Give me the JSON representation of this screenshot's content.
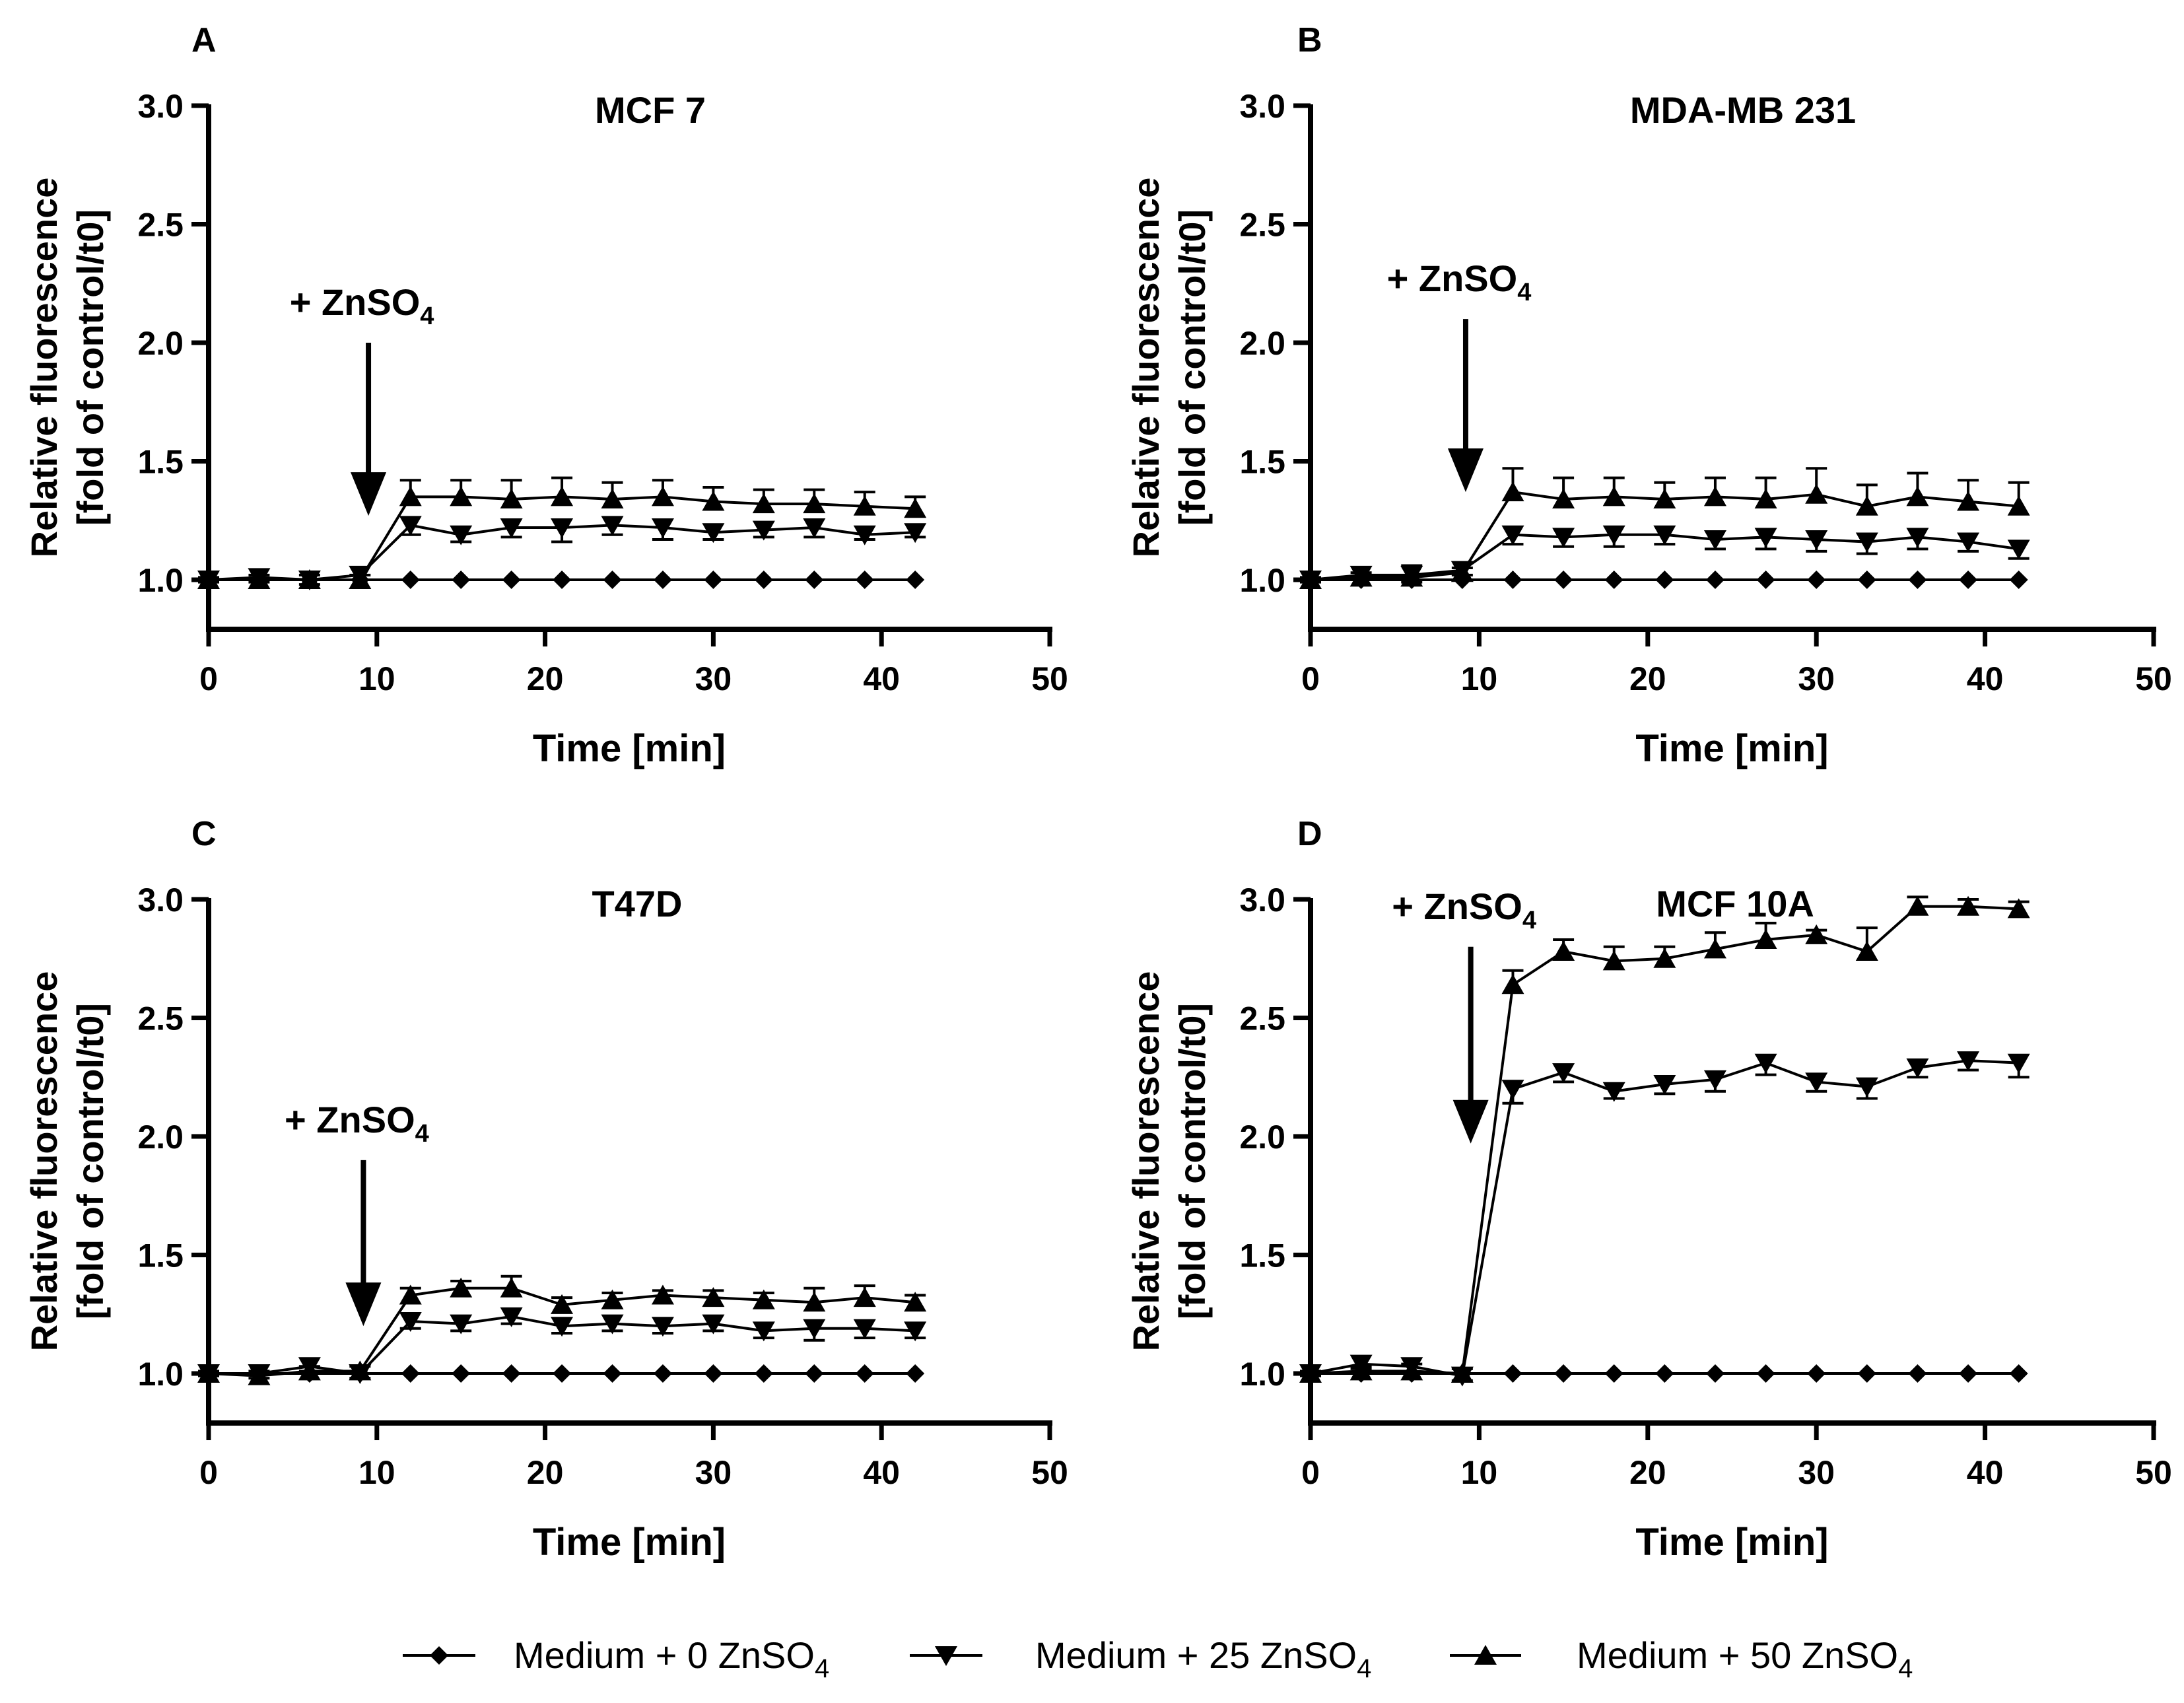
{
  "figure": {
    "legend": [
      {
        "label": "Medium + 0 ZnSO",
        "subscript": "4",
        "marker": "diamond"
      },
      {
        "label": "Medium + 25 ZnSO",
        "subscript": "4",
        "marker": "triangle-down"
      },
      {
        "label": "Medium + 50 ZnSO",
        "subscript": "4",
        "marker": "triangle-up"
      }
    ],
    "colors": {
      "line": "#000000",
      "marker": "#000000",
      "background": "#ffffff"
    }
  },
  "chart_data": [
    {
      "type": "line",
      "panel": "A",
      "title": "MCF 7",
      "xlabel": "Time [min]",
      "ylabel_line1": "Relative fluorescence",
      "ylabel_line2": "[fold of control/t0]",
      "xlim": [
        0,
        50
      ],
      "ylim": [
        0.8,
        3.0
      ],
      "xticks": [
        "0",
        "10",
        "20",
        "30",
        "40",
        "50"
      ],
      "yticks": [
        "1.0",
        "1.5",
        "2.0",
        "2.5",
        "3.0"
      ],
      "annotation": {
        "text": "+ ZnSO",
        "subscript": "4",
        "at_time": 9.5,
        "arrow_from": 2.0,
        "arrow_to": 1.27
      },
      "x": [
        0,
        3,
        6,
        9,
        12,
        15,
        18,
        21,
        24,
        27,
        30,
        33,
        36,
        39,
        42
      ],
      "series": [
        {
          "name": "Medium + 0 ZnSO4",
          "marker": "diamond",
          "values": [
            1.0,
            1.0,
            1.0,
            1.0,
            1.0,
            1.0,
            1.0,
            1.0,
            1.0,
            1.0,
            1.0,
            1.0,
            1.0,
            1.0,
            1.0
          ],
          "errors": [
            0,
            0,
            0,
            0,
            0,
            0,
            0,
            0,
            0,
            0,
            0,
            0,
            0,
            0,
            0
          ]
        },
        {
          "name": "Medium + 25 ZnSO4",
          "marker": "triangle-down",
          "values": [
            1.0,
            1.01,
            1.0,
            1.02,
            1.23,
            1.19,
            1.22,
            1.22,
            1.23,
            1.22,
            1.2,
            1.21,
            1.22,
            1.19,
            1.2
          ],
          "errors": [
            0.01,
            0.02,
            0.02,
            0.02,
            0.04,
            0.03,
            0.04,
            0.06,
            0.04,
            0.05,
            0.03,
            0.03,
            0.04,
            0.02,
            0.02
          ]
        },
        {
          "name": "Medium + 50 ZnSO4",
          "marker": "triangle-up",
          "values": [
            1.0,
            1.0,
            1.0,
            1.0,
            1.35,
            1.35,
            1.34,
            1.35,
            1.34,
            1.35,
            1.33,
            1.32,
            1.32,
            1.31,
            1.3
          ],
          "errors": [
            0.01,
            0.02,
            0.02,
            0.02,
            0.07,
            0.07,
            0.08,
            0.08,
            0.07,
            0.07,
            0.06,
            0.06,
            0.06,
            0.06,
            0.05
          ]
        }
      ]
    },
    {
      "type": "line",
      "panel": "B",
      "title": "MDA-MB 231",
      "xlabel": "Time [min]",
      "ylabel_line1": "Relative fluorescence",
      "ylabel_line2": "[fold of control/t0]",
      "xlim": [
        0,
        50
      ],
      "ylim": [
        0.8,
        3.0
      ],
      "xticks": [
        "0",
        "10",
        "20",
        "30",
        "40",
        "50"
      ],
      "yticks": [
        "1.0",
        "1.5",
        "2.0",
        "2.5",
        "3.0"
      ],
      "annotation": {
        "text": "+ ZnSO",
        "subscript": "4",
        "at_time": 9.2,
        "arrow_from": 2.1,
        "arrow_to": 1.37
      },
      "x": [
        0,
        3,
        6,
        9,
        12,
        15,
        18,
        21,
        24,
        27,
        30,
        33,
        36,
        39,
        42
      ],
      "series": [
        {
          "name": "Medium + 0 ZnSO4",
          "marker": "diamond",
          "values": [
            1.0,
            1.0,
            1.0,
            1.0,
            1.0,
            1.0,
            1.0,
            1.0,
            1.0,
            1.0,
            1.0,
            1.0,
            1.0,
            1.0,
            1.0
          ],
          "errors": [
            0,
            0,
            0,
            0,
            0,
            0,
            0,
            0,
            0,
            0,
            0,
            0,
            0,
            0,
            0
          ]
        },
        {
          "name": "Medium + 25 ZnSO4",
          "marker": "triangle-down",
          "values": [
            1.0,
            1.02,
            1.02,
            1.04,
            1.19,
            1.18,
            1.19,
            1.19,
            1.17,
            1.18,
            1.17,
            1.16,
            1.18,
            1.16,
            1.13
          ],
          "errors": [
            0.01,
            0.02,
            0.03,
            0.02,
            0.04,
            0.04,
            0.05,
            0.04,
            0.04,
            0.05,
            0.05,
            0.05,
            0.05,
            0.04,
            0.04
          ]
        },
        {
          "name": "Medium + 50 ZnSO4",
          "marker": "triangle-up",
          "values": [
            1.0,
            1.01,
            1.01,
            1.03,
            1.37,
            1.34,
            1.35,
            1.34,
            1.35,
            1.34,
            1.36,
            1.31,
            1.35,
            1.33,
            1.31
          ],
          "errors": [
            0.01,
            0.02,
            0.05,
            0.02,
            0.1,
            0.09,
            0.08,
            0.07,
            0.08,
            0.09,
            0.11,
            0.09,
            0.1,
            0.09,
            0.1
          ]
        }
      ]
    },
    {
      "type": "line",
      "panel": "C",
      "title": "T47D",
      "xlabel": "Time [min]",
      "ylabel_line1": "Relative fluorescence",
      "ylabel_line2": "[fold of control/t0]",
      "xlim": [
        0,
        50
      ],
      "ylim": [
        0.8,
        3.0
      ],
      "xticks": [
        "0",
        "10",
        "20",
        "30",
        "40",
        "50"
      ],
      "yticks": [
        "1.0",
        "1.5",
        "2.0",
        "2.5",
        "3.0"
      ],
      "annotation": {
        "text": "+ ZnSO",
        "subscript": "4",
        "at_time": 9.2,
        "arrow_from": 1.9,
        "arrow_to": 1.2
      },
      "x": [
        0,
        3,
        6,
        9,
        12,
        15,
        18,
        21,
        24,
        27,
        30,
        33,
        36,
        39,
        42
      ],
      "series": [
        {
          "name": "Medium + 0 ZnSO4",
          "marker": "diamond",
          "values": [
            1.0,
            1.0,
            1.0,
            1.0,
            1.0,
            1.0,
            1.0,
            1.0,
            1.0,
            1.0,
            1.0,
            1.0,
            1.0,
            1.0,
            1.0
          ],
          "errors": [
            0,
            0,
            0,
            0,
            0,
            0,
            0,
            0,
            0,
            0,
            0,
            0,
            0,
            0,
            0
          ]
        },
        {
          "name": "Medium + 25 ZnSO4",
          "marker": "triangle-down",
          "values": [
            1.0,
            1.0,
            1.03,
            1.0,
            1.22,
            1.21,
            1.24,
            1.2,
            1.21,
            1.2,
            1.21,
            1.18,
            1.19,
            1.19,
            1.18
          ],
          "errors": [
            0.01,
            0.02,
            0.02,
            0.02,
            0.03,
            0.03,
            0.03,
            0.03,
            0.03,
            0.03,
            0.03,
            0.03,
            0.05,
            0.04,
            0.03
          ]
        },
        {
          "name": "Medium + 50 ZnSO4",
          "marker": "triangle-up",
          "values": [
            1.0,
            0.99,
            1.01,
            1.01,
            1.33,
            1.36,
            1.36,
            1.29,
            1.31,
            1.33,
            1.32,
            1.31,
            1.3,
            1.32,
            1.3
          ],
          "errors": [
            0.01,
            0.02,
            0.02,
            0.02,
            0.03,
            0.03,
            0.05,
            0.03,
            0.03,
            0.02,
            0.03,
            0.03,
            0.06,
            0.05,
            0.03
          ]
        }
      ]
    },
    {
      "type": "line",
      "panel": "D",
      "title": "MCF 10A",
      "xlabel": "Time [min]",
      "ylabel_line1": "Relative fluorescence",
      "ylabel_line2": "[fold of control/t0]",
      "xlim": [
        0,
        50
      ],
      "ylim": [
        0.8,
        3.0
      ],
      "xticks": [
        "0",
        "10",
        "20",
        "30",
        "40",
        "50"
      ],
      "yticks": [
        "1.0",
        "1.5",
        "2.0",
        "2.5",
        "3.0"
      ],
      "annotation": {
        "text": "+ ZnSO",
        "subscript": "4",
        "at_time": 9.5,
        "arrow_from": 2.8,
        "arrow_to": 1.97
      },
      "x": [
        0,
        3,
        6,
        9,
        12,
        15,
        18,
        21,
        24,
        27,
        30,
        33,
        36,
        39,
        42
      ],
      "series": [
        {
          "name": "Medium + 0 ZnSO4",
          "marker": "diamond",
          "values": [
            1.0,
            1.0,
            1.0,
            1.0,
            1.0,
            1.0,
            1.0,
            1.0,
            1.0,
            1.0,
            1.0,
            1.0,
            1.0,
            1.0,
            1.0
          ],
          "errors": [
            0,
            0,
            0,
            0,
            0,
            0,
            0,
            0,
            0,
            0,
            0,
            0,
            0,
            0,
            0
          ]
        },
        {
          "name": "Medium + 25 ZnSO4",
          "marker": "triangle-down",
          "values": [
            1.0,
            1.04,
            1.03,
            0.99,
            2.2,
            2.27,
            2.19,
            2.22,
            2.24,
            2.31,
            2.23,
            2.21,
            2.29,
            2.32,
            2.31
          ],
          "errors": [
            0.01,
            0.02,
            0.03,
            0.02,
            0.06,
            0.04,
            0.03,
            0.04,
            0.05,
            0.05,
            0.04,
            0.05,
            0.04,
            0.04,
            0.06
          ]
        },
        {
          "name": "Medium + 50 ZnSO4",
          "marker": "triangle-up",
          "values": [
            1.0,
            1.01,
            1.01,
            1.0,
            2.64,
            2.78,
            2.74,
            2.75,
            2.79,
            2.83,
            2.85,
            2.78,
            2.97,
            2.97,
            2.96
          ],
          "errors": [
            0.01,
            0.02,
            0.03,
            0.02,
            0.06,
            0.05,
            0.06,
            0.05,
            0.07,
            0.07,
            0.02,
            0.1,
            0.04,
            0.03,
            0.03
          ]
        }
      ]
    }
  ]
}
